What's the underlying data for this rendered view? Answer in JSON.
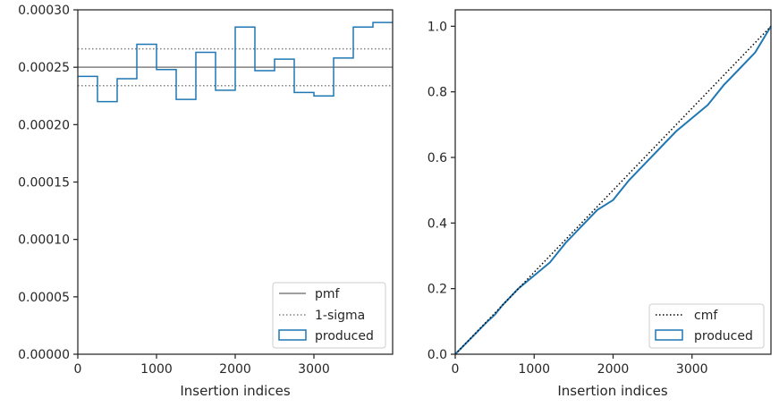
{
  "chart_data": [
    {
      "type": "line",
      "xlabel": "Insertion indices",
      "ylabel": "",
      "xlim": [
        0,
        4000
      ],
      "ylim": [
        0,
        0.0003
      ],
      "xticks": [
        0,
        1000,
        2000,
        3000
      ],
      "xtick_labels": [
        "0",
        "1000",
        "2000",
        "3000"
      ],
      "yticks": [
        0,
        5e-05,
        0.0001,
        0.00015,
        0.0002,
        0.00025,
        0.0003
      ],
      "ytick_labels": [
        "0.00000",
        "0.00005",
        "0.00010",
        "0.00015",
        "0.00020",
        "0.00025",
        "0.00030"
      ],
      "legend_position": "lower-right",
      "pmf": 0.00025,
      "sigma_band": [
        0.000234,
        0.000266
      ],
      "bin_edges": [
        0,
        250,
        500,
        750,
        1000,
        1250,
        1500,
        1750,
        2000,
        2250,
        2500,
        2750,
        3000,
        3250,
        3500,
        3750,
        4000
      ],
      "histogram_values": [
        0.000242,
        0.00022,
        0.00024,
        0.00027,
        0.000248,
        0.000222,
        0.000263,
        0.00023,
        0.000285,
        0.000247,
        0.000257,
        0.000228,
        0.000225,
        0.000258,
        0.000285,
        0.000289
      ],
      "series": [
        {
          "name": "pmf",
          "color": "#808080",
          "style": "solid"
        },
        {
          "name": "1-sigma",
          "color": "#808080",
          "style": "dotted"
        },
        {
          "name": "produced",
          "color": "#1f77b4",
          "style": "step"
        }
      ]
    },
    {
      "type": "line",
      "xlabel": "Insertion indices",
      "ylabel": "",
      "xlim": [
        0,
        4000
      ],
      "ylim": [
        0,
        1.05
      ],
      "xticks": [
        0,
        1000,
        2000,
        3000
      ],
      "xtick_labels": [
        "0",
        "1000",
        "2000",
        "3000"
      ],
      "yticks": [
        0,
        0.2,
        0.4,
        0.6,
        0.8,
        1.0
      ],
      "ytick_labels": [
        "0.0",
        "0.2",
        "0.4",
        "0.6",
        "0.8",
        "1.0"
      ],
      "legend_position": "lower-right",
      "cmf": {
        "x": [
          0,
          4000
        ],
        "y": [
          0,
          1
        ]
      },
      "produced_cdf": {
        "x": [
          0,
          200,
          400,
          500,
          600,
          800,
          1000,
          1200,
          1400,
          1600,
          1800,
          2000,
          2200,
          2400,
          2600,
          2800,
          3000,
          3200,
          3400,
          3600,
          3800,
          4000
        ],
        "y": [
          0,
          0.049,
          0.098,
          0.12,
          0.15,
          0.2,
          0.24,
          0.28,
          0.34,
          0.39,
          0.44,
          0.47,
          0.53,
          0.58,
          0.63,
          0.68,
          0.72,
          0.76,
          0.82,
          0.87,
          0.92,
          1.0
        ]
      },
      "series": [
        {
          "name": "cmf",
          "color": "#000000",
          "style": "dotted"
        },
        {
          "name": "produced",
          "color": "#1f77b4",
          "style": "solid"
        }
      ]
    }
  ]
}
